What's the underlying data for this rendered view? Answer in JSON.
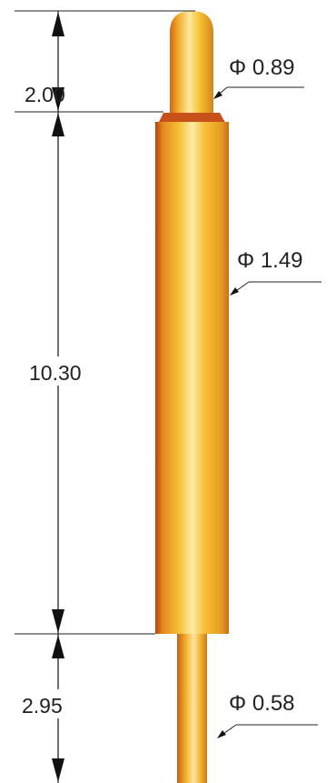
{
  "dimensions": {
    "tip_length": "2.00",
    "barrel_length": "10.30",
    "tail_length": "2.95"
  },
  "diameters": {
    "plunger": "Φ 0.89",
    "barrel": "Φ 1.49",
    "tail": "Φ 0.58"
  },
  "colors": {
    "gold_light": "#FFE9A0",
    "gold_mid": "#F5BE2E",
    "gold_dark": "#E0A020",
    "edge_orange": "#D2651E",
    "edge_red": "#B03A10",
    "line": "#222222"
  }
}
